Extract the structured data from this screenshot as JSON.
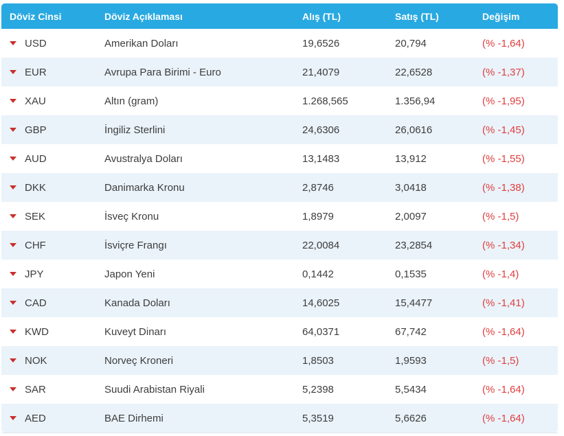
{
  "table": {
    "columns": [
      {
        "label": "Döviz Cinsi"
      },
      {
        "label": "Döviz Açıklaması"
      },
      {
        "label": "Alış (TL)"
      },
      {
        "label": "Satış (TL)"
      },
      {
        "label": "Değişim"
      }
    ],
    "rows": [
      {
        "code": "USD",
        "name": "Amerikan Doları",
        "buy": "19,6526",
        "sell": "20,794",
        "change": "(% -1,64)",
        "direction": "down"
      },
      {
        "code": "EUR",
        "name": "Avrupa Para Birimi - Euro",
        "buy": "21,4079",
        "sell": "22,6528",
        "change": "(% -1,37)",
        "direction": "down"
      },
      {
        "code": "XAU",
        "name": "Altın (gram)",
        "buy": "1.268,565",
        "sell": "1.356,94",
        "change": "(% -1,95)",
        "direction": "down"
      },
      {
        "code": "GBP",
        "name": "İngiliz Sterlini",
        "buy": "24,6306",
        "sell": "26,0616",
        "change": "(% -1,45)",
        "direction": "down"
      },
      {
        "code": "AUD",
        "name": "Avustralya Doları",
        "buy": "13,1483",
        "sell": "13,912",
        "change": "(% -1,55)",
        "direction": "down"
      },
      {
        "code": "DKK",
        "name": "Danimarka Kronu",
        "buy": "2,8746",
        "sell": "3,0418",
        "change": "(% -1,38)",
        "direction": "down"
      },
      {
        "code": "SEK",
        "name": "İsveç Kronu",
        "buy": "1,8979",
        "sell": "2,0097",
        "change": "(% -1,5)",
        "direction": "down"
      },
      {
        "code": "CHF",
        "name": "İsviçre Frangı",
        "buy": "22,0084",
        "sell": "23,2854",
        "change": "(% -1,34)",
        "direction": "down"
      },
      {
        "code": "JPY",
        "name": "Japon Yeni",
        "buy": "0,1442",
        "sell": "0,1535",
        "change": "(% -1,4)",
        "direction": "down"
      },
      {
        "code": "CAD",
        "name": "Kanada Doları",
        "buy": "14,6025",
        "sell": "15,4477",
        "change": "(% -1,41)",
        "direction": "down"
      },
      {
        "code": "KWD",
        "name": "Kuveyt Dinarı",
        "buy": "64,0371",
        "sell": "67,742",
        "change": "(% -1,64)",
        "direction": "down"
      },
      {
        "code": "NOK",
        "name": "Norveç Kroneri",
        "buy": "1,8503",
        "sell": "1,9593",
        "change": "(% -1,5)",
        "direction": "down"
      },
      {
        "code": "SAR",
        "name": "Suudi Arabistan Riyali",
        "buy": "5,2398",
        "sell": "5,5434",
        "change": "(% -1,64)",
        "direction": "down"
      },
      {
        "code": "AED",
        "name": "BAE Dirhemi",
        "buy": "5,3519",
        "sell": "5,6626",
        "change": "(% -1,64)",
        "direction": "down"
      }
    ]
  },
  "colors": {
    "header_bg": "#29a9e1",
    "header_text": "#ffffff",
    "row_bg": "#ffffff",
    "row_alt_bg": "#eaf3fa",
    "text": "#3d3d3d",
    "change_negative": "#df3e3e",
    "arrow_down": "#c8302c",
    "border": "#dce6ee"
  },
  "icons": {
    "row_indicator": "down-triangle-icon"
  }
}
